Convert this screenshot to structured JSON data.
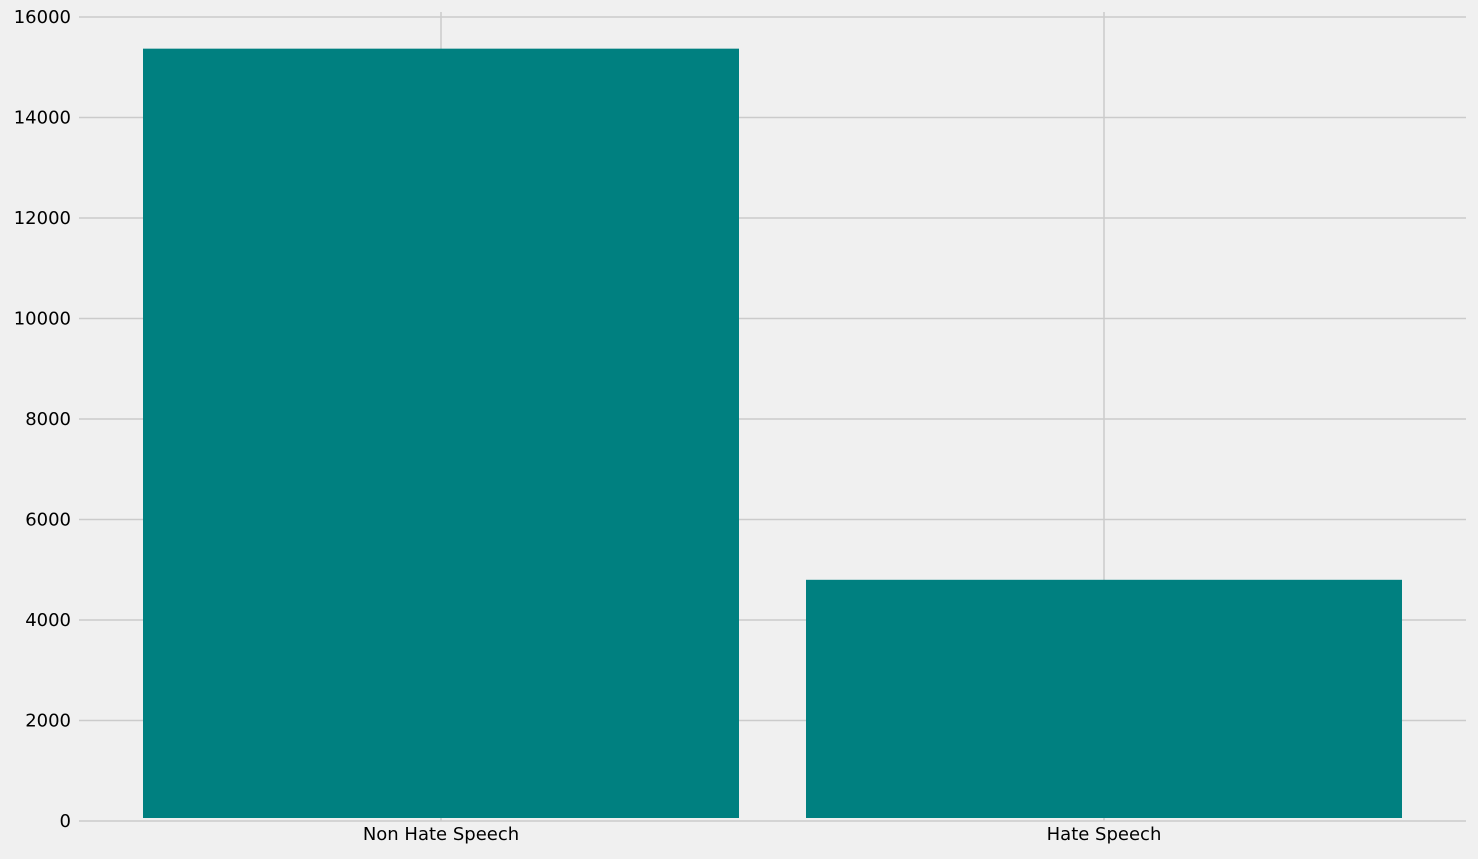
{
  "chart_data": {
    "type": "bar",
    "categories": [
      "Non Hate Speech",
      "Hate Speech"
    ],
    "values": [
      15370,
      4800
    ],
    "title": "",
    "xlabel": "",
    "ylabel": "",
    "ylim": [
      0,
      16000
    ],
    "yticks": [
      0,
      2000,
      4000,
      6000,
      8000,
      10000,
      12000,
      14000,
      16000
    ],
    "grid": true,
    "legend": "none",
    "colors": {
      "bar": "#008080",
      "background": "#f0f0f0",
      "grid": "#cbcbcb",
      "text": "#000000"
    }
  }
}
